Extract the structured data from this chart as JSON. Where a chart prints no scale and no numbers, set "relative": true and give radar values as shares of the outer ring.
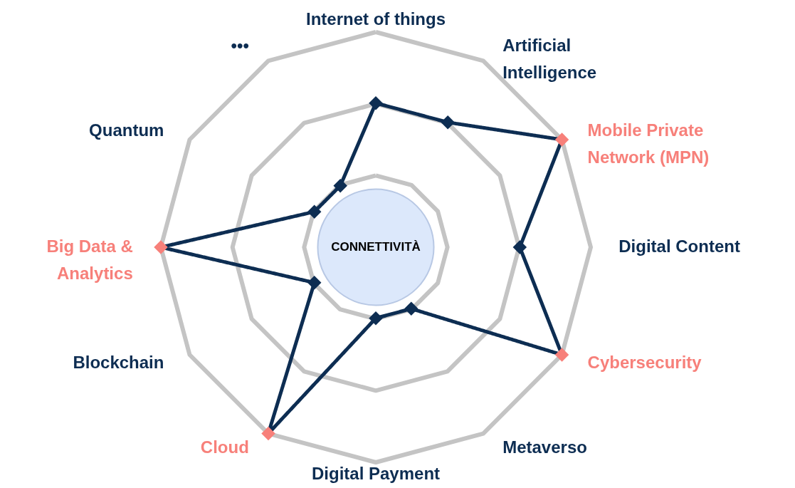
{
  "chart_data": {
    "type": "radar",
    "relative": true,
    "grid": true,
    "marker": "diamond",
    "line_style": "solid",
    "categories": [
      "Internet of things",
      "Artificial Intelligence",
      "Mobile Private Network (MPN)",
      "Digital Content",
      "Cybersecurity",
      "Metaverso",
      "Digital Payment",
      "Cloud",
      "Blockchain",
      "Big Data & Analytics",
      "Quantum",
      "•••"
    ],
    "series": [
      {
        "color": "#0d2d52",
        "values": [
          0.67,
          0.67,
          1,
          0.67,
          1,
          0.33,
          0.33,
          1,
          0.33,
          1,
          0.33,
          0.33
        ],
        "colors": [
          "#0d2d52",
          "#0d2d52",
          "#f7807a",
          "#0d2d52",
          "#f7807a",
          "#0d2d52",
          "#0d2d52",
          "#f7807a",
          "#0d2d52",
          "#f7807a",
          "#0d2d52",
          "#0d2d52"
        ]
      }
    ],
    "annotations": [
      "CONNETTIVITÀ"
    ]
  }
}
